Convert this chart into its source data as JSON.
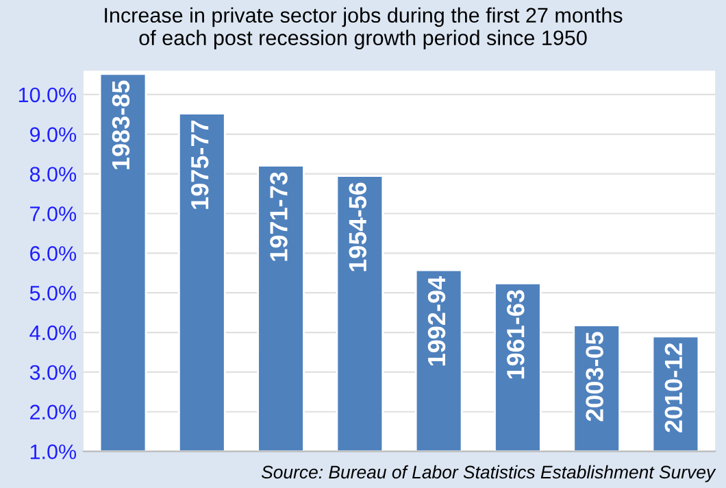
{
  "chart_data": {
    "type": "bar",
    "title": "Increase in private sector jobs during the first 27 months\nof each post recession growth period since 1950",
    "categories": [
      "1983-85",
      "1975-77",
      "1971-73",
      "1954-56",
      "1992-94",
      "1961-63",
      "2003-05",
      "2010-12"
    ],
    "values": [
      10.52,
      9.52,
      8.21,
      7.95,
      5.57,
      5.24,
      4.18,
      3.9
    ],
    "color": "#4f81bd",
    "ylim": [
      1,
      10.6
    ],
    "yticks": [
      {
        "value": 1,
        "label": "1.0%"
      },
      {
        "value": 2,
        "label": "2.0%"
      },
      {
        "value": 3,
        "label": "3.0%"
      },
      {
        "value": 4,
        "label": "4.0%"
      },
      {
        "value": 5,
        "label": "5.0%"
      },
      {
        "value": 6,
        "label": "6.0%"
      },
      {
        "value": 7,
        "label": "7.0%"
      },
      {
        "value": 8,
        "label": "8.0%"
      },
      {
        "value": 9,
        "label": "9.0%"
      },
      {
        "value": 10,
        "label": "10.0%"
      }
    ],
    "grid": "y",
    "tick_labels": "y",
    "annotations": [
      "Source: Bureau of Labor Statistics Establishment Survey"
    ]
  }
}
